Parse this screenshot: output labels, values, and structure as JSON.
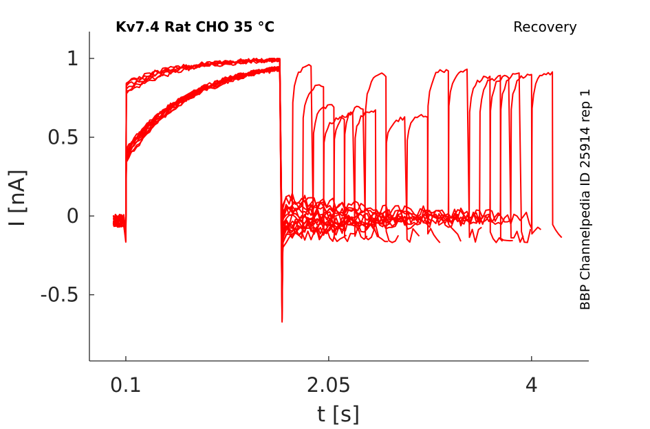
{
  "chart_data": {
    "type": "line",
    "title": "Kv7.4  Rat  CHO  35 °C",
    "subtitle": "Recovery",
    "annotation": "BBP Channelpedia ID 25914 rep 1",
    "xlabel": "t [s]",
    "ylabel": "I [nA]",
    "xlim": [
      -0.25,
      4.55
    ],
    "ylim": [
      -0.92,
      1.17
    ],
    "xticks": [
      0.1,
      2.05,
      4
    ],
    "xtick_labels": [
      "0.1",
      "2.05",
      "4"
    ],
    "yticks": [
      -0.5,
      0,
      0.5,
      1
    ],
    "ytick_labels": [
      "-0.5",
      "0",
      "0.5",
      "1"
    ],
    "grid": false,
    "legend": "none",
    "color": "#ff0000",
    "pulse_start": 0.1,
    "pulse_end": 1.6,
    "repeats": [
      {
        "recovery_end": 1.7,
        "test_end": 1.9,
        "peak": 0.96
      },
      {
        "recovery_end": 1.8,
        "test_end": 2.0,
        "peak": 0.83
      },
      {
        "recovery_end": 1.9,
        "test_end": 2.1,
        "peak": 0.7
      },
      {
        "recovery_end": 2.0,
        "test_end": 2.2,
        "peak": 0.62
      },
      {
        "recovery_end": 2.1,
        "test_end": 2.3,
        "peak": 0.65
      },
      {
        "recovery_end": 2.2,
        "test_end": 2.4,
        "peak": 0.69
      },
      {
        "recovery_end": 2.3,
        "test_end": 2.5,
        "peak": 0.66
      },
      {
        "recovery_end": 2.4,
        "test_end": 2.6,
        "peak": 0.9
      },
      {
        "recovery_end": 2.6,
        "test_end": 2.8,
        "peak": 0.62
      },
      {
        "recovery_end": 2.8,
        "test_end": 3.0,
        "peak": 0.64
      },
      {
        "recovery_end": 3.0,
        "test_end": 3.2,
        "peak": 0.93
      },
      {
        "recovery_end": 3.2,
        "test_end": 3.4,
        "peak": 0.93
      },
      {
        "recovery_end": 3.4,
        "test_end": 3.6,
        "peak": 0.88
      },
      {
        "recovery_end": 3.5,
        "test_end": 3.7,
        "peak": 0.88
      },
      {
        "recovery_end": 3.6,
        "test_end": 3.8,
        "peak": 0.89
      },
      {
        "recovery_end": 3.7,
        "test_end": 3.9,
        "peak": 0.9
      },
      {
        "recovery_end": 3.8,
        "test_end": 4.0,
        "peak": 0.9
      },
      {
        "recovery_end": 4.0,
        "test_end": 4.2,
        "peak": 0.91
      }
    ]
  }
}
